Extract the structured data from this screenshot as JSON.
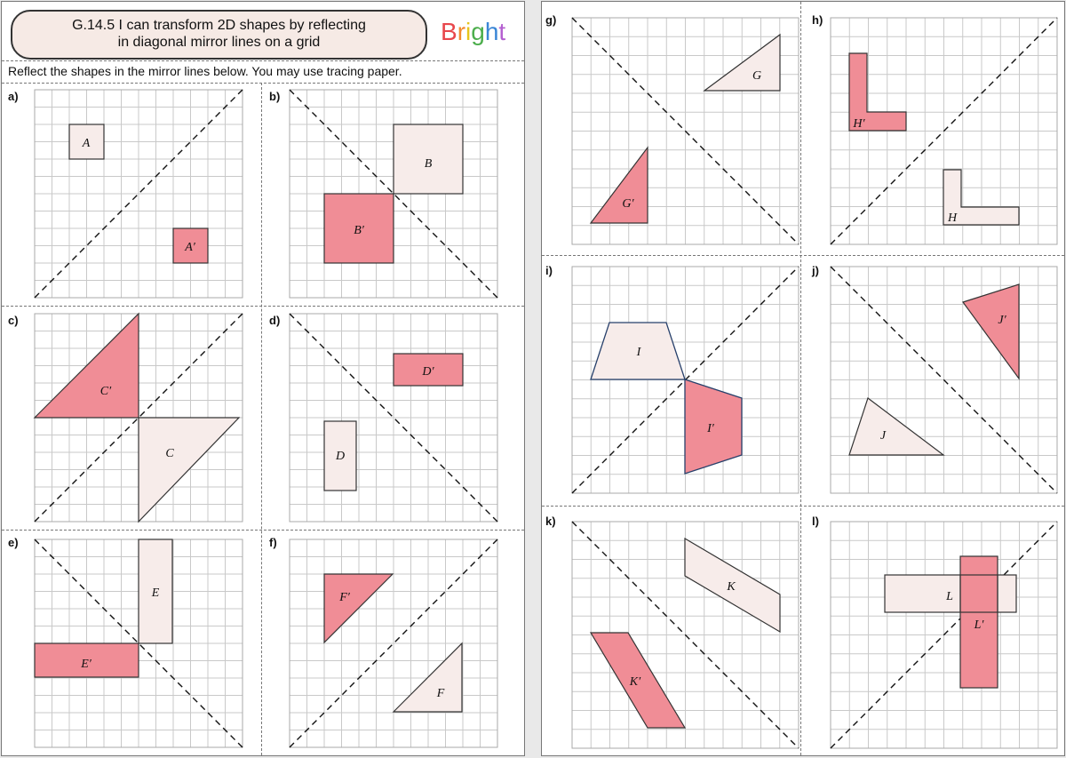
{
  "header": {
    "title": "G.14.5 I can transform 2D shapes by reflecting\nin diagonal mirror lines on a grid",
    "brand": [
      "B",
      "r",
      "i",
      "g",
      "h",
      "t"
    ],
    "brand_colors": [
      "#e8474c",
      "#f28a2e",
      "#e6c51b",
      "#4cae4c",
      "#3a86d6",
      "#b45fd0"
    ]
  },
  "instruction": "Reflect the shapes in the mirror lines below. You may use tracing paper.",
  "panels": {
    "a": {
      "label": "a)",
      "shape": "A",
      "image": "A′"
    },
    "b": {
      "label": "b)",
      "shape": "B",
      "image": "B′"
    },
    "c": {
      "label": "c)",
      "shape": "C",
      "image": "C′"
    },
    "d": {
      "label": "d)",
      "shape": "D",
      "image": "D′"
    },
    "e": {
      "label": "e)",
      "shape": "E",
      "image": "E′"
    },
    "f": {
      "label": "f)",
      "shape": "F",
      "image": "F′"
    },
    "g": {
      "label": "g)",
      "shape": "G",
      "image": "G′"
    },
    "h": {
      "label": "h)",
      "shape": "H",
      "image": "H′"
    },
    "i": {
      "label": "i)",
      "shape": "I",
      "image": "I′"
    },
    "j": {
      "label": "j)",
      "shape": "J",
      "image": "J′"
    },
    "k": {
      "label": "k)",
      "shape": "K",
      "image": "K′"
    },
    "l": {
      "label": "l)",
      "shape": "L",
      "image": "L′"
    }
  }
}
